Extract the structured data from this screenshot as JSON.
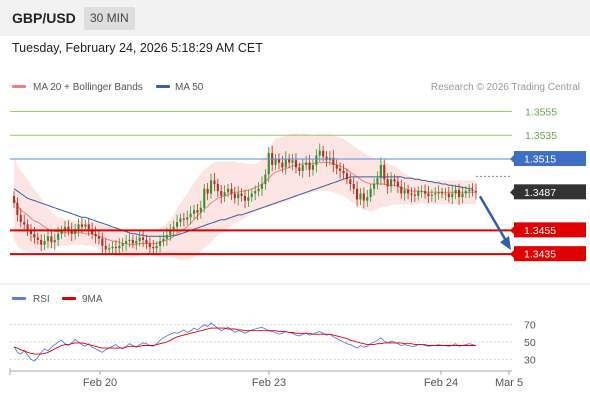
{
  "header": {
    "pair": "GBP/USD",
    "timeframe": "30 MIN",
    "datetime": "Tuesday, February 24, 2026 5:18:29 AM CET"
  },
  "legend": {
    "ma20_label": "MA 20 + Bollinger Bands",
    "ma50_label": "MA 50",
    "ma20_color": "#f08080",
    "ma50_color": "#3a5fa0",
    "copyright": "Research © 2026 Trading Central"
  },
  "rsi_legend": {
    "rsi_label": "RSI",
    "ma9_label": "9MA",
    "rsi_color": "#5b7fd6",
    "ma9_color": "#e00000"
  },
  "chart_data": [
    {
      "type": "candlestick",
      "ylim": [
        1.342,
        1.3568
      ],
      "levels": [
        {
          "value": 1.3555,
          "label": "1.3555",
          "kind": "resistance-green"
        },
        {
          "value": 1.3535,
          "label": "1.3535",
          "kind": "resistance-green"
        },
        {
          "value": 1.3515,
          "label": "1.3515",
          "kind": "pivot-blue"
        },
        {
          "value": 1.3487,
          "label": "1.3487",
          "kind": "last-price"
        },
        {
          "value": 1.3455,
          "label": "1.3455",
          "kind": "support-red"
        },
        {
          "value": 1.3435,
          "label": "1.3435",
          "kind": "support-red"
        }
      ],
      "x_ticks": [
        "Feb 20",
        "Feb 23",
        "Feb 24",
        "Mar 5"
      ],
      "close": [
        1.3478,
        1.3468,
        1.3462,
        1.346,
        1.3455,
        1.3452,
        1.3449,
        1.3447,
        1.3443,
        1.3446,
        1.345,
        1.3445,
        1.3447,
        1.3452,
        1.3455,
        1.3458,
        1.3455,
        1.3452,
        1.3456,
        1.346,
        1.3458,
        1.346,
        1.3456,
        1.3452,
        1.345,
        1.3448,
        1.3442,
        1.3439,
        1.344,
        1.3441,
        1.344,
        1.3442,
        1.3444,
        1.3446,
        1.3447,
        1.3444,
        1.3446,
        1.3449,
        1.3447,
        1.3444,
        1.3441,
        1.344,
        1.3442,
        1.3446,
        1.3448,
        1.3451,
        1.3456,
        1.3458,
        1.3462,
        1.3465,
        1.3464,
        1.3466,
        1.3469,
        1.3472,
        1.347,
        1.3474,
        1.349,
        1.3486,
        1.3497,
        1.3494,
        1.3488,
        1.3484,
        1.3487,
        1.349,
        1.3486,
        1.3482,
        1.3486,
        1.3484,
        1.348,
        1.3483,
        1.3486,
        1.3488,
        1.349,
        1.3494,
        1.3502,
        1.352,
        1.351,
        1.3515,
        1.3512,
        1.3508,
        1.3515,
        1.3512,
        1.3514,
        1.3508,
        1.3505,
        1.351,
        1.3512,
        1.3506,
        1.351,
        1.3518,
        1.3522,
        1.3517,
        1.3514,
        1.3516,
        1.351,
        1.3507,
        1.3505,
        1.3503,
        1.3498,
        1.3494,
        1.349,
        1.3481,
        1.3486,
        1.348,
        1.3483,
        1.349,
        1.3494,
        1.3499,
        1.351,
        1.3498,
        1.3492,
        1.3498,
        1.3496,
        1.3492,
        1.3486,
        1.3489,
        1.3486,
        1.3485,
        1.3484,
        1.3488,
        1.3488,
        1.3486,
        1.3484,
        1.3485,
        1.3486,
        1.3487,
        1.3486,
        1.3486,
        1.3483,
        1.3486,
        1.3489,
        1.3483,
        1.3486,
        1.3488,
        1.3489,
        1.3488,
        1.3487
      ],
      "ma20": [
        1.3482,
        1.3476,
        1.3472,
        1.347,
        1.3468,
        1.3465,
        1.3463,
        1.3462,
        1.346,
        1.3458,
        1.3456,
        1.3455,
        1.3454,
        1.3454,
        1.3454,
        1.3453,
        1.3453,
        1.3453,
        1.3453,
        1.3453,
        1.3453,
        1.3452,
        1.3452,
        1.3452,
        1.3451,
        1.345,
        1.3449,
        1.3448,
        1.3447,
        1.3446,
        1.3446,
        1.3445,
        1.3444,
        1.3444,
        1.3443,
        1.3443,
        1.3443,
        1.3444,
        1.3444,
        1.3444,
        1.3444,
        1.3444,
        1.3444,
        1.3445,
        1.3446,
        1.3447,
        1.3448,
        1.345,
        1.3452,
        1.3454,
        1.3456,
        1.3458,
        1.3461,
        1.3464,
        1.3467,
        1.347,
        1.3473,
        1.3475,
        1.3478,
        1.348,
        1.3482,
        1.3483,
        1.3484,
        1.3485,
        1.3486,
        1.3487,
        1.3487,
        1.3488,
        1.3488,
        1.3489,
        1.349,
        1.3491,
        1.3492,
        1.3494,
        1.3496,
        1.3499,
        1.3502,
        1.3504,
        1.3505,
        1.3506,
        1.3507,
        1.3508,
        1.3509,
        1.351,
        1.351,
        1.3511,
        1.3511,
        1.3511,
        1.3511,
        1.3512,
        1.3512,
        1.3512,
        1.3512,
        1.3512,
        1.3511,
        1.351,
        1.3509,
        1.3508,
        1.3506,
        1.3504,
        1.3502,
        1.35,
        1.3498,
        1.3496,
        1.3495,
        1.3494,
        1.3494,
        1.3494,
        1.3494,
        1.3494,
        1.3493,
        1.3493,
        1.3493,
        1.3492,
        1.3491,
        1.349,
        1.3489,
        1.3488,
        1.3488,
        1.3488,
        1.3488,
        1.3487,
        1.3487,
        1.3487,
        1.3487,
        1.3487,
        1.3487,
        1.3487,
        1.3487,
        1.3487,
        1.3487,
        1.3487,
        1.3487,
        1.3487,
        1.3487,
        1.3487,
        1.3487
      ],
      "bb_width": [
        0.0034,
        0.0034,
        0.0033,
        0.0032,
        0.003,
        0.0028,
        0.0026,
        0.0024,
        0.0022,
        0.002,
        0.0018,
        0.0016,
        0.0014,
        0.0012,
        0.0012,
        0.0011,
        0.0011,
        0.001,
        0.001,
        0.001,
        0.001,
        0.001,
        0.001,
        0.001,
        0.001,
        0.0011,
        0.0011,
        0.0011,
        0.0011,
        0.0011,
        0.0011,
        0.0011,
        0.0011,
        0.0011,
        0.0011,
        0.0011,
        0.001,
        0.001,
        0.001,
        0.001,
        0.001,
        0.001,
        0.0011,
        0.0012,
        0.0013,
        0.0014,
        0.0016,
        0.0018,
        0.0021,
        0.0024,
        0.0026,
        0.0028,
        0.003,
        0.0031,
        0.0032,
        0.0033,
        0.0033,
        0.0033,
        0.0033,
        0.0032,
        0.0031,
        0.003,
        0.0029,
        0.0028,
        0.0027,
        0.0026,
        0.0025,
        0.0024,
        0.0023,
        0.0022,
        0.0021,
        0.002,
        0.002,
        0.0021,
        0.0022,
        0.0024,
        0.0026,
        0.0028,
        0.0028,
        0.0028,
        0.0028,
        0.0028,
        0.0027,
        0.0027,
        0.0026,
        0.0026,
        0.0025,
        0.0025,
        0.0024,
        0.0024,
        0.0024,
        0.0024,
        0.0024,
        0.0024,
        0.0024,
        0.0024,
        0.0024,
        0.0024,
        0.0024,
        0.0024,
        0.0024,
        0.0024,
        0.0024,
        0.0024,
        0.0023,
        0.0023,
        0.0022,
        0.0021,
        0.002,
        0.0019,
        0.0018,
        0.0017,
        0.0016,
        0.0015,
        0.0014,
        0.0013,
        0.0012,
        0.0012,
        0.0011,
        0.0011,
        0.001,
        0.001,
        0.001,
        0.001,
        0.001,
        0.001,
        0.001,
        0.001,
        0.001,
        0.001,
        0.001,
        0.001,
        0.001,
        0.001,
        0.001,
        0.001,
        0.001
      ],
      "ma50": [
        1.349,
        1.3488,
        1.3486,
        1.3484,
        1.3482,
        1.3481,
        1.348,
        1.3479,
        1.3478,
        1.3477,
        1.3476,
        1.3475,
        1.3474,
        1.3473,
        1.3472,
        1.3471,
        1.347,
        1.3469,
        1.3468,
        1.3467,
        1.3466,
        1.3466,
        1.3465,
        1.3464,
        1.3463,
        1.3462,
        1.3461,
        1.346,
        1.3459,
        1.3458,
        1.3457,
        1.3456,
        1.3455,
        1.3454,
        1.3453,
        1.3452,
        1.3452,
        1.3451,
        1.3451,
        1.345,
        1.345,
        1.345,
        1.345,
        1.345,
        1.345,
        1.345,
        1.345,
        1.3451,
        1.3451,
        1.3452,
        1.3453,
        1.3454,
        1.3455,
        1.3456,
        1.3457,
        1.3458,
        1.3459,
        1.346,
        1.3461,
        1.3462,
        1.3463,
        1.3464,
        1.3464,
        1.3465,
        1.3466,
        1.3467,
        1.3468,
        1.3468,
        1.3469,
        1.347,
        1.3471,
        1.3472,
        1.3473,
        1.3474,
        1.3475,
        1.3476,
        1.3477,
        1.3478,
        1.3479,
        1.348,
        1.3481,
        1.3482,
        1.3483,
        1.3484,
        1.3485,
        1.3486,
        1.3487,
        1.3488,
        1.3489,
        1.349,
        1.3491,
        1.3492,
        1.3493,
        1.3494,
        1.3495,
        1.3496,
        1.3497,
        1.3498,
        1.3499,
        1.35,
        1.35,
        1.35,
        1.35,
        1.35,
        1.35,
        1.35,
        1.35,
        1.35,
        1.35,
        1.35,
        1.35,
        1.35,
        1.35,
        1.35,
        1.35,
        1.3499,
        1.3499,
        1.3499,
        1.3498,
        1.3498,
        1.3497,
        1.3497,
        1.3496,
        1.3496,
        1.3495,
        1.3495,
        1.3494,
        1.3494,
        1.3493,
        1.3493,
        1.3492,
        1.3492,
        1.3491,
        1.3491,
        1.349,
        1.349
      ],
      "projection": {
        "from": 1.3487,
        "to": 1.3435
      }
    },
    {
      "type": "line",
      "title": "RSI",
      "ylim": [
        20,
        80
      ],
      "y_ticks": [
        70,
        50,
        30
      ],
      "rsi": [
        45,
        38,
        36,
        40,
        35,
        30,
        28,
        32,
        38,
        42,
        40,
        44,
        47,
        50,
        52,
        48,
        46,
        49,
        53,
        50,
        47,
        45,
        48,
        44,
        42,
        40,
        38,
        41,
        43,
        45,
        47,
        44,
        42,
        45,
        48,
        46,
        44,
        47,
        49,
        48,
        46,
        45,
        48,
        52,
        55,
        57,
        59,
        61,
        60,
        62,
        64,
        61,
        63,
        66,
        64,
        67,
        70,
        68,
        72,
        69,
        66,
        63,
        65,
        67,
        64,
        61,
        63,
        62,
        60,
        62,
        64,
        65,
        66,
        67,
        65,
        63,
        62,
        61,
        59,
        60,
        62,
        61,
        60,
        58,
        57,
        59,
        60,
        58,
        59,
        61,
        62,
        60,
        58,
        59,
        56,
        54,
        52,
        50,
        48,
        47,
        45,
        43,
        46,
        44,
        45,
        48,
        50,
        52,
        55,
        51,
        49,
        51,
        50,
        48,
        46,
        47,
        46,
        45,
        45,
        47,
        47,
        46,
        45,
        46,
        46,
        47,
        46,
        46,
        45,
        46,
        48,
        45,
        46,
        47,
        48,
        47,
        46
      ],
      "ma9": [
        44,
        43,
        41,
        40,
        38,
        37,
        36,
        36,
        36,
        37,
        38,
        40,
        42,
        44,
        46,
        47,
        47,
        48,
        49,
        49,
        49,
        48,
        47,
        46,
        45,
        44,
        43,
        43,
        43,
        43,
        43,
        43,
        43,
        44,
        45,
        45,
        45,
        45,
        46,
        46,
        46,
        46,
        47,
        48,
        49,
        50,
        52,
        54,
        56,
        57,
        58,
        59,
        60,
        61,
        62,
        63,
        64,
        65,
        66,
        66,
        66,
        66,
        66,
        65,
        65,
        65,
        64,
        64,
        63,
        63,
        63,
        63,
        63,
        63,
        63,
        63,
        63,
        63,
        62,
        62,
        62,
        61,
        61,
        60,
        60,
        60,
        60,
        60,
        59,
        59,
        59,
        59,
        59,
        59,
        58,
        57,
        56,
        55,
        54,
        52,
        51,
        50,
        49,
        48,
        47,
        47,
        47,
        48,
        48,
        49,
        49,
        49,
        49,
        49,
        49,
        48,
        48,
        48,
        47,
        47,
        47,
        47,
        46,
        46,
        46,
        46,
        46,
        46,
        46,
        46,
        46,
        46,
        46,
        46,
        46,
        46,
        46
      ]
    }
  ]
}
